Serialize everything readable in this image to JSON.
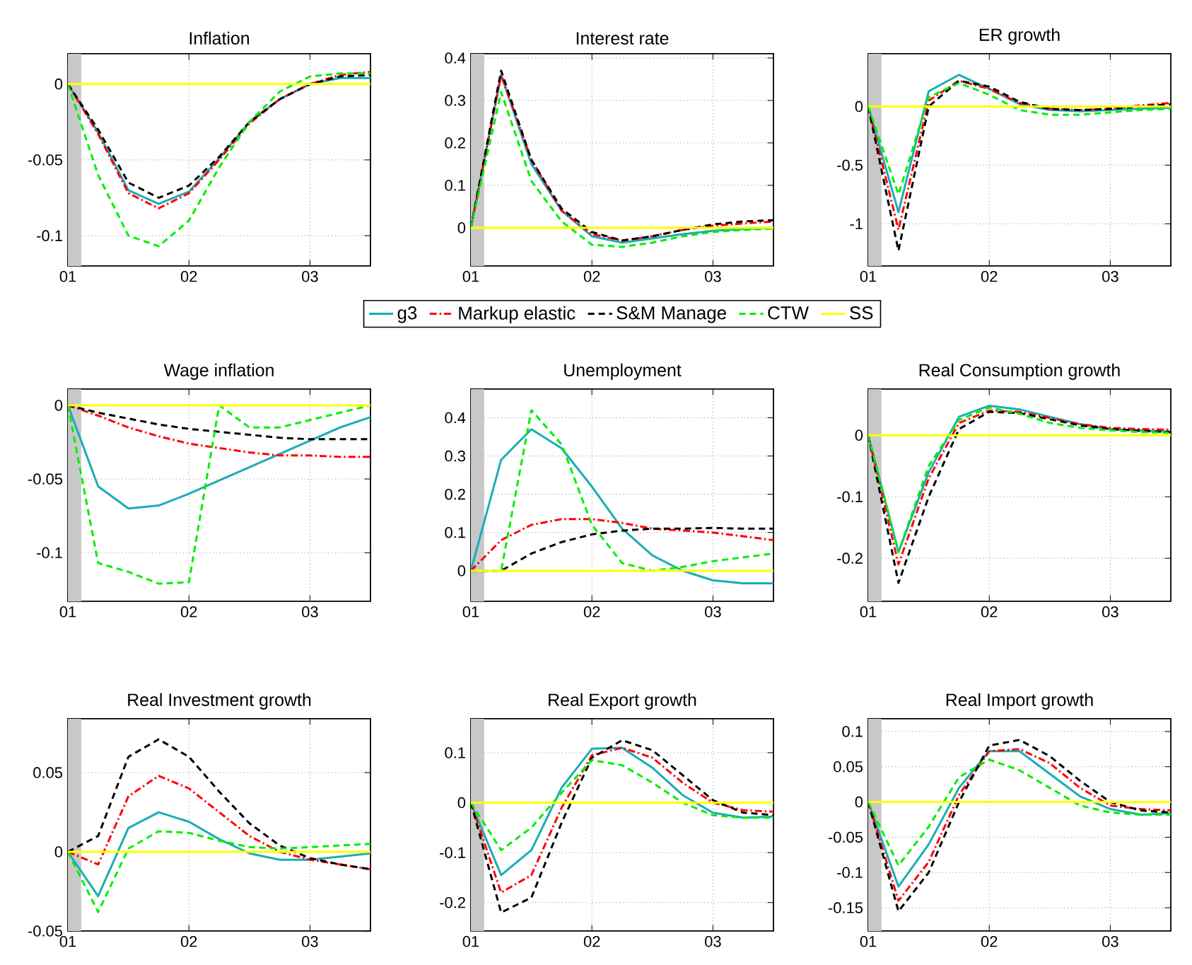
{
  "chart_data": [
    {
      "type": "line",
      "title": "Inflation",
      "x": [
        1,
        1.25,
        1.5,
        1.75,
        2,
        2.25,
        2.5,
        2.75,
        3,
        3.25,
        3.5
      ],
      "xlim": [
        1,
        3.5
      ],
      "xticks": [
        {
          "value": 1,
          "label": "01"
        },
        {
          "value": 2,
          "label": "02"
        },
        {
          "value": 3,
          "label": "03"
        }
      ],
      "ylim": [
        -0.12,
        0.02
      ],
      "yticks": [
        -0.1,
        -0.05,
        0
      ],
      "grid": true,
      "bands": [
        {
          "axis": "x",
          "from": 1,
          "to": 1.11,
          "color": "#c8c8c8"
        }
      ],
      "series": [
        {
          "color": "#1aadb5",
          "line_style": "solid",
          "values": [
            0,
            -0.032,
            -0.07,
            -0.079,
            -0.071,
            -0.049,
            -0.025,
            -0.01,
            0,
            0.004,
            0.004
          ]
        },
        {
          "color": "#ff0000",
          "line_style": "dashdot",
          "values": [
            0,
            -0.033,
            -0.072,
            -0.082,
            -0.072,
            -0.05,
            -0.026,
            -0.01,
            0,
            0.006,
            0.008
          ]
        },
        {
          "color": "#000000",
          "line_style": "dashed",
          "values": [
            0,
            -0.03,
            -0.065,
            -0.075,
            -0.067,
            -0.048,
            -0.025,
            -0.01,
            0,
            0.005,
            0.006
          ]
        },
        {
          "color": "#00ee00",
          "line_style": "dashed",
          "values": [
            0,
            -0.06,
            -0.1,
            -0.107,
            -0.09,
            -0.055,
            -0.025,
            -0.005,
            0.005,
            0.007,
            0.007
          ]
        },
        {
          "color": "#ffff00",
          "line_style": "solid",
          "values": [
            0,
            0,
            0,
            0,
            0,
            0,
            0,
            0,
            0,
            0,
            0
          ]
        }
      ]
    },
    {
      "type": "line",
      "title": "Interest rate",
      "x": [
        1,
        1.25,
        1.5,
        1.75,
        2,
        2.25,
        2.5,
        2.75,
        3,
        3.25,
        3.5
      ],
      "xlim": [
        1,
        3.5
      ],
      "xticks": [
        {
          "value": 1,
          "label": "01"
        },
        {
          "value": 2,
          "label": "02"
        },
        {
          "value": 3,
          "label": "03"
        }
      ],
      "ylim": [
        -0.09,
        0.41
      ],
      "yticks": [
        0,
        0.1,
        0.2,
        0.3,
        0.4
      ],
      "grid": true,
      "legend": "bottom",
      "bands": [
        {
          "axis": "x",
          "from": 1,
          "to": 1.11,
          "color": "#c8c8c8"
        }
      ],
      "series": [
        {
          "name": "g3",
          "color": "#1aadb5",
          "line_style": "solid",
          "values": [
            0,
            0.36,
            0.15,
            0.04,
            -0.02,
            -0.035,
            -0.025,
            -0.015,
            -0.007,
            -0.003,
            0
          ]
        },
        {
          "name": "Markup elastic",
          "color": "#ff0000",
          "line_style": "dashdot",
          "values": [
            0,
            0.36,
            0.16,
            0.04,
            -0.015,
            -0.03,
            -0.02,
            -0.005,
            0.005,
            0.01,
            0.015
          ]
        },
        {
          "name": "S&M Manage",
          "color": "#000000",
          "line_style": "dashed",
          "values": [
            0,
            0.37,
            0.16,
            0.045,
            -0.01,
            -0.03,
            -0.02,
            -0.005,
            0.008,
            0.015,
            0.018
          ]
        },
        {
          "name": "CTW",
          "color": "#00ee00",
          "line_style": "dashed",
          "values": [
            0,
            0.32,
            0.11,
            0.015,
            -0.04,
            -0.045,
            -0.035,
            -0.02,
            -0.01,
            -0.005,
            -0.002
          ]
        },
        {
          "name": "SS",
          "color": "#ffff00",
          "line_style": "solid",
          "values": [
            0,
            0,
            0,
            0,
            0,
            0,
            0,
            0,
            0,
            0,
            0
          ]
        }
      ]
    },
    {
      "type": "line",
      "title": "ER growth",
      "x": [
        1,
        1.25,
        1.5,
        1.75,
        2,
        2.25,
        2.5,
        2.75,
        3,
        3.25,
        3.5
      ],
      "xlim": [
        1,
        3.5
      ],
      "xticks": [
        {
          "value": 1,
          "label": "01"
        },
        {
          "value": 2,
          "label": "02"
        },
        {
          "value": 3,
          "label": "03"
        }
      ],
      "ylim": [
        -1.36,
        0.45
      ],
      "yticks": [
        -1,
        -0.5,
        0
      ],
      "grid": true,
      "bands": [
        {
          "axis": "x",
          "from": 1,
          "to": 1.11,
          "color": "#c8c8c8"
        }
      ],
      "series": [
        {
          "color": "#1aadb5",
          "line_style": "solid",
          "values": [
            0,
            -0.9,
            0.13,
            0.27,
            0.15,
            0.02,
            -0.03,
            -0.04,
            -0.03,
            -0.02,
            -0.01
          ]
        },
        {
          "color": "#ff0000",
          "line_style": "dashdot",
          "values": [
            0,
            -1.05,
            0.05,
            0.22,
            0.15,
            0.03,
            -0.02,
            -0.03,
            -0.02,
            0.01,
            0.03
          ]
        },
        {
          "color": "#000000",
          "line_style": "dashed",
          "values": [
            0,
            -1.23,
            0,
            0.22,
            0.17,
            0.04,
            -0.02,
            -0.03,
            -0.02,
            0,
            0.02
          ]
        },
        {
          "color": "#00ee00",
          "line_style": "dashed",
          "values": [
            0,
            -0.75,
            0.08,
            0.2,
            0.1,
            -0.03,
            -0.07,
            -0.07,
            -0.05,
            -0.03,
            -0.02
          ]
        },
        {
          "color": "#ffff00",
          "line_style": "solid",
          "values": [
            0,
            0,
            0,
            0,
            0,
            0,
            0,
            0,
            0,
            0,
            0
          ]
        }
      ]
    },
    {
      "type": "line",
      "title": "Wage inflation",
      "x": [
        1,
        1.25,
        1.5,
        1.75,
        2,
        2.25,
        2.5,
        2.75,
        3,
        3.25,
        3.5
      ],
      "xlim": [
        1,
        3.5
      ],
      "xticks": [
        {
          "value": 1,
          "label": "01"
        },
        {
          "value": 2,
          "label": "02"
        },
        {
          "value": 3,
          "label": "03"
        }
      ],
      "ylim": [
        -0.133,
        0.011
      ],
      "yticks": [
        -0.1,
        -0.05,
        0
      ],
      "grid": true,
      "bands": [
        {
          "axis": "x",
          "from": 1,
          "to": 1.11,
          "color": "#c8c8c8"
        }
      ],
      "series": [
        {
          "color": "#1aadb5",
          "line_style": "solid",
          "values": [
            0,
            -0.055,
            -0.07,
            -0.068,
            -0.06,
            -0.051,
            -0.042,
            -0.033,
            -0.024,
            -0.015,
            -0.008
          ]
        },
        {
          "color": "#ff0000",
          "line_style": "dashdot",
          "values": [
            0,
            -0.007,
            -0.015,
            -0.021,
            -0.026,
            -0.029,
            -0.032,
            -0.034,
            -0.034,
            -0.035,
            -0.035
          ]
        },
        {
          "color": "#000000",
          "line_style": "dashed",
          "values": [
            0,
            -0.005,
            -0.009,
            -0.013,
            -0.016,
            -0.018,
            -0.02,
            -0.022,
            -0.023,
            -0.023,
            -0.023
          ]
        },
        {
          "color": "#00ee00",
          "line_style": "dashed",
          "values": [
            0,
            -0.107,
            -0.113,
            -0.121,
            -0.12,
            0,
            -0.015,
            -0.015,
            -0.01,
            -0.005,
            0
          ]
        },
        {
          "color": "#ffff00",
          "line_style": "solid",
          "values": [
            0,
            0,
            0,
            0,
            0,
            0,
            0,
            0,
            0,
            0,
            0
          ]
        }
      ]
    },
    {
      "type": "line",
      "title": "Unemployment",
      "x": [
        1,
        1.25,
        1.5,
        1.75,
        2,
        2.25,
        2.5,
        2.75,
        3,
        3.25,
        3.5
      ],
      "xlim": [
        1,
        3.5
      ],
      "xticks": [
        {
          "value": 1,
          "label": "01"
        },
        {
          "value": 2,
          "label": "02"
        },
        {
          "value": 3,
          "label": "03"
        }
      ],
      "ylim": [
        -0.08,
        0.475
      ],
      "yticks": [
        0,
        0.1,
        0.2,
        0.3,
        0.4
      ],
      "grid": true,
      "bands": [
        {
          "axis": "x",
          "from": 1,
          "to": 1.11,
          "color": "#c8c8c8"
        }
      ],
      "series": [
        {
          "color": "#1aadb5",
          "line_style": "solid",
          "values": [
            0,
            0.29,
            0.37,
            0.32,
            0.22,
            0.11,
            0.04,
            0,
            -0.025,
            -0.033,
            -0.033
          ]
        },
        {
          "color": "#ff0000",
          "line_style": "dashdot",
          "values": [
            0,
            0.08,
            0.12,
            0.135,
            0.135,
            0.125,
            0.11,
            0.105,
            0.1,
            0.09,
            0.08
          ]
        },
        {
          "color": "#000000",
          "line_style": "dashed",
          "values": [
            0,
            0,
            0.045,
            0.075,
            0.095,
            0.105,
            0.11,
            0.11,
            0.112,
            0.11,
            0.11
          ]
        },
        {
          "color": "#00ee00",
          "line_style": "dashed",
          "values": [
            0,
            0,
            0.42,
            0.33,
            0.12,
            0.02,
            0,
            0.01,
            0.025,
            0.035,
            0.045
          ]
        },
        {
          "color": "#ffff00",
          "line_style": "solid",
          "values": [
            0,
            0,
            0,
            0,
            0,
            0,
            0,
            0,
            0,
            0,
            0
          ]
        }
      ]
    },
    {
      "type": "line",
      "title": "Real Consumption growth",
      "x": [
        1,
        1.25,
        1.5,
        1.75,
        2,
        2.25,
        2.5,
        2.75,
        3,
        3.25,
        3.5
      ],
      "xlim": [
        1,
        3.5
      ],
      "xticks": [
        {
          "value": 1,
          "label": "01"
        },
        {
          "value": 2,
          "label": "02"
        },
        {
          "value": 3,
          "label": "03"
        }
      ],
      "ylim": [
        -0.27,
        0.075
      ],
      "yticks": [
        -0.2,
        -0.1,
        0
      ],
      "grid": true,
      "bands": [
        {
          "axis": "x",
          "from": 1,
          "to": 1.11,
          "color": "#c8c8c8"
        }
      ],
      "series": [
        {
          "color": "#1aadb5",
          "line_style": "solid",
          "values": [
            0,
            -0.19,
            -0.06,
            0.03,
            0.048,
            0.042,
            0.03,
            0.018,
            0.01,
            0.008,
            0.006
          ]
        },
        {
          "color": "#ff0000",
          "line_style": "dashdot",
          "values": [
            0,
            -0.21,
            -0.07,
            0.02,
            0.04,
            0.038,
            0.028,
            0.018,
            0.012,
            0.01,
            0.009
          ]
        },
        {
          "color": "#000000",
          "line_style": "dashed",
          "values": [
            0,
            -0.24,
            -0.1,
            0.01,
            0.038,
            0.036,
            0.026,
            0.016,
            0.01,
            0.007,
            0.005
          ]
        },
        {
          "color": "#00ee00",
          "line_style": "dashed",
          "values": [
            0,
            -0.19,
            -0.05,
            0.025,
            0.045,
            0.035,
            0.02,
            0.012,
            0.008,
            0.005,
            0.004
          ]
        },
        {
          "color": "#ffff00",
          "line_style": "solid",
          "values": [
            0,
            0,
            0,
            0,
            0,
            0,
            0,
            0,
            0,
            0,
            0
          ]
        }
      ]
    },
    {
      "type": "line",
      "title": "Real Investment growth",
      "x": [
        1,
        1.25,
        1.5,
        1.75,
        2,
        2.25,
        2.5,
        2.75,
        3,
        3.25,
        3.5
      ],
      "xlim": [
        1,
        3.5
      ],
      "xticks": [
        {
          "value": 1,
          "label": "01"
        },
        {
          "value": 2,
          "label": "02"
        },
        {
          "value": 3,
          "label": "03"
        }
      ],
      "ylim": [
        -0.05,
        0.084
      ],
      "yticks": [
        -0.05,
        0,
        0.05
      ],
      "grid": true,
      "bands": [
        {
          "axis": "x",
          "from": 1,
          "to": 1.11,
          "color": "#c8c8c8"
        }
      ],
      "series": [
        {
          "color": "#1aadb5",
          "line_style": "solid",
          "values": [
            0,
            -0.028,
            0.015,
            0.025,
            0.019,
            0.008,
            -0.001,
            -0.005,
            -0.005,
            -0.003,
            -0.001
          ]
        },
        {
          "color": "#ff0000",
          "line_style": "dashdot",
          "values": [
            0,
            -0.008,
            0.035,
            0.048,
            0.04,
            0.025,
            0.01,
            0,
            -0.005,
            -0.008,
            -0.011
          ]
        },
        {
          "color": "#000000",
          "line_style": "dashed",
          "values": [
            0,
            0.01,
            0.06,
            0.071,
            0.06,
            0.038,
            0.018,
            0.004,
            -0.004,
            -0.008,
            -0.011
          ]
        },
        {
          "color": "#00ee00",
          "line_style": "dashed",
          "values": [
            0,
            -0.038,
            0.002,
            0.013,
            0.012,
            0.007,
            0.003,
            0.002,
            0.003,
            0.004,
            0.005
          ]
        },
        {
          "color": "#ffff00",
          "line_style": "solid",
          "values": [
            0,
            0,
            0,
            0,
            0,
            0,
            0,
            0,
            0,
            0,
            0
          ]
        }
      ]
    },
    {
      "type": "line",
      "title": "Real Export growth",
      "x": [
        1,
        1.25,
        1.5,
        1.75,
        2,
        2.25,
        2.5,
        2.75,
        3,
        3.25,
        3.5
      ],
      "xlim": [
        1,
        3.5
      ],
      "xticks": [
        {
          "value": 1,
          "label": "01"
        },
        {
          "value": 2,
          "label": "02"
        },
        {
          "value": 3,
          "label": "03"
        }
      ],
      "ylim": [
        -0.257,
        0.168
      ],
      "yticks": [
        -0.2,
        -0.1,
        0,
        0.1
      ],
      "grid": true,
      "bands": [
        {
          "axis": "x",
          "from": 1,
          "to": 1.11,
          "color": "#c8c8c8"
        }
      ],
      "series": [
        {
          "color": "#1aadb5",
          "line_style": "solid",
          "values": [
            0,
            -0.145,
            -0.095,
            0.03,
            0.108,
            0.11,
            0.07,
            0.015,
            -0.02,
            -0.03,
            -0.028
          ]
        },
        {
          "color": "#ff0000",
          "line_style": "dashdot",
          "values": [
            0,
            -0.18,
            -0.145,
            -0.01,
            0.095,
            0.11,
            0.09,
            0.04,
            0,
            -0.015,
            -0.018
          ]
        },
        {
          "color": "#000000",
          "line_style": "dashed",
          "values": [
            0,
            -0.22,
            -0.19,
            -0.04,
            0.09,
            0.125,
            0.105,
            0.055,
            0.005,
            -0.02,
            -0.025
          ]
        },
        {
          "color": "#00ee00",
          "line_style": "dashed",
          "values": [
            0,
            -0.095,
            -0.05,
            0.02,
            0.085,
            0.075,
            0.04,
            0,
            -0.025,
            -0.03,
            -0.03
          ]
        },
        {
          "color": "#ffff00",
          "line_style": "solid",
          "values": [
            0,
            0,
            0,
            0,
            0,
            0,
            0,
            0,
            0,
            0,
            0
          ]
        }
      ]
    },
    {
      "type": "line",
      "title": "Real Import growth",
      "x": [
        1,
        1.25,
        1.5,
        1.75,
        2,
        2.25,
        2.5,
        2.75,
        3,
        3.25,
        3.5
      ],
      "xlim": [
        1,
        3.5
      ],
      "xticks": [
        {
          "value": 1,
          "label": "01"
        },
        {
          "value": 2,
          "label": "02"
        },
        {
          "value": 3,
          "label": "03"
        }
      ],
      "ylim": [
        -0.183,
        0.118
      ],
      "yticks": [
        -0.15,
        -0.1,
        -0.05,
        0,
        0.05,
        0.1
      ],
      "grid": true,
      "bands": [
        {
          "axis": "x",
          "from": 1,
          "to": 1.11,
          "color": "#c8c8c8"
        }
      ],
      "series": [
        {
          "color": "#1aadb5",
          "line_style": "solid",
          "values": [
            0,
            -0.12,
            -0.06,
            0.02,
            0.072,
            0.072,
            0.04,
            0.008,
            -0.01,
            -0.018,
            -0.016
          ]
        },
        {
          "color": "#ff0000",
          "line_style": "dashdot",
          "values": [
            0,
            -0.14,
            -0.085,
            0.01,
            0.072,
            0.075,
            0.055,
            0.02,
            -0.005,
            -0.01,
            -0.012
          ]
        },
        {
          "color": "#000000",
          "line_style": "dashed",
          "values": [
            0,
            -0.155,
            -0.1,
            0,
            0.08,
            0.088,
            0.065,
            0.03,
            0,
            -0.012,
            -0.015
          ]
        },
        {
          "color": "#00ee00",
          "line_style": "dashed",
          "values": [
            0,
            -0.09,
            -0.035,
            0.035,
            0.06,
            0.045,
            0.02,
            -0.005,
            -0.015,
            -0.018,
            -0.018
          ]
        },
        {
          "color": "#ffff00",
          "line_style": "solid",
          "values": [
            0,
            0,
            0,
            0,
            0,
            0,
            0,
            0,
            0,
            0,
            0
          ]
        }
      ]
    }
  ]
}
